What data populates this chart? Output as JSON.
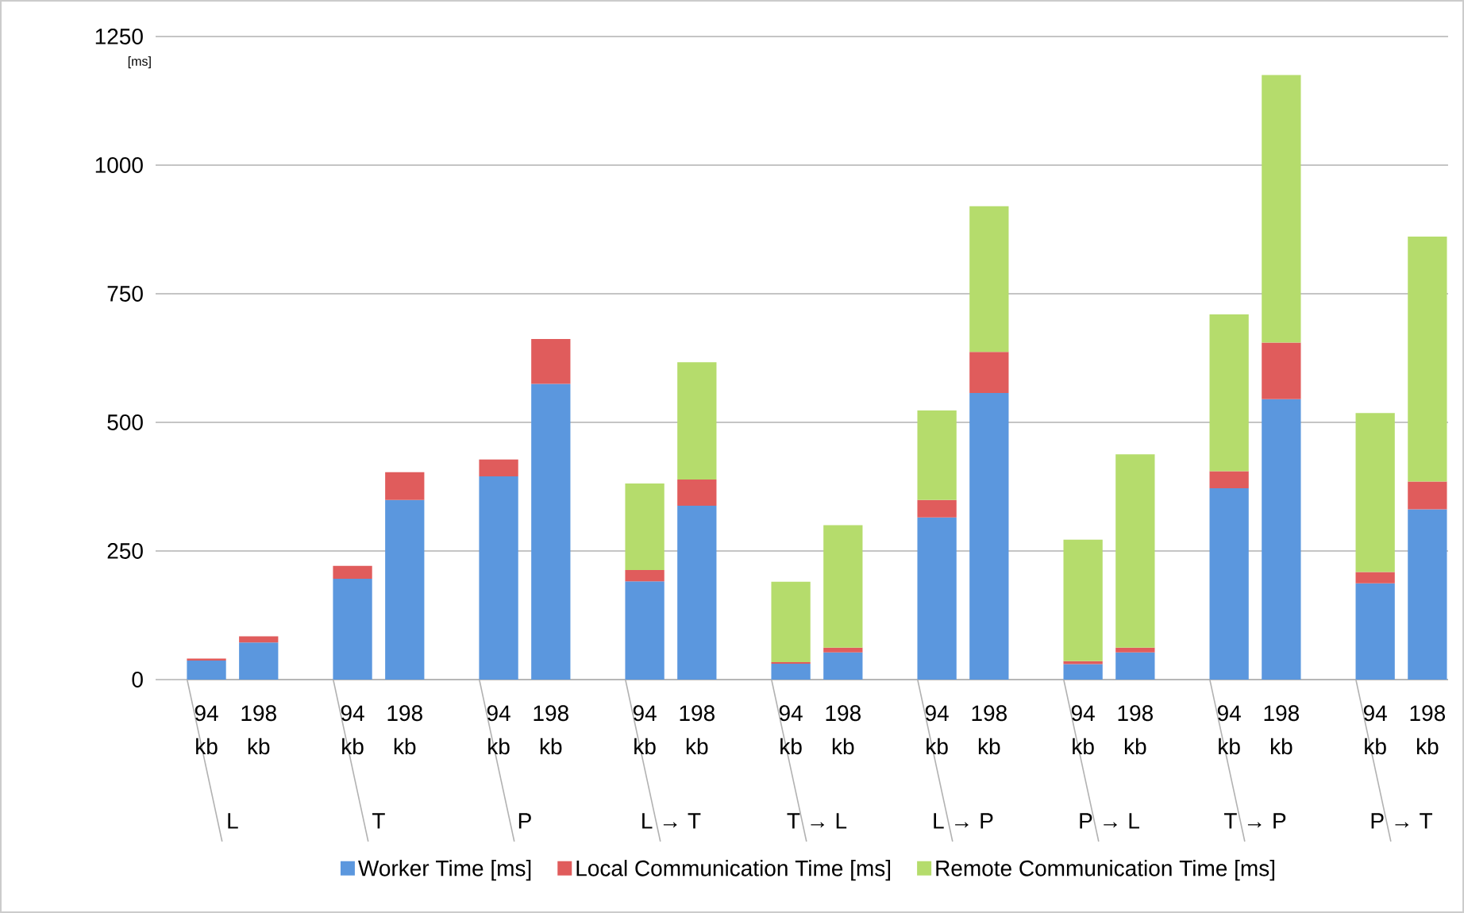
{
  "chart_data": {
    "type": "bar",
    "stacked": true,
    "ylabel": "[ms]",
    "categories": [
      "94 kb",
      "198 kb",
      "94 kb",
      "198 kb",
      "94 kb",
      "198 kb",
      "94 kb",
      "198 kb",
      "94 kb",
      "198 kb",
      "94 kb",
      "198 kb",
      "94 kb",
      "198 kb",
      "94 kb",
      "198 kb",
      "94 kb",
      "198 kb"
    ],
    "series": [
      {
        "name": "Worker Time [ms]",
        "color": "#5b97de",
        "values": [
          37,
          72,
          196,
          349,
          395,
          575,
          191,
          338,
          31,
          53,
          315,
          557,
          30,
          53,
          372,
          545,
          187,
          331
        ]
      },
      {
        "name": "Local Communication Time [ms]",
        "color": "#e05c5c",
        "values": [
          4,
          12,
          25,
          54,
          33,
          87,
          22,
          51,
          3,
          9,
          34,
          80,
          6,
          9,
          33,
          110,
          22,
          54
        ]
      },
      {
        "name": "Remote Communication Time [ms]",
        "color": "#b5dc6c",
        "values": [
          null,
          null,
          null,
          null,
          null,
          null,
          168,
          228,
          156,
          238,
          174,
          283,
          236,
          376,
          305,
          520,
          309,
          476
        ]
      }
    ],
    "annotations": [
      "L",
      "T",
      "P",
      "L → T",
      "T → L",
      "L → P",
      "P → L",
      "T → P",
      "P → T"
    ],
    "ylim": [
      0,
      1250
    ],
    "yticks": [
      0,
      250,
      500,
      750,
      1000,
      1250
    ],
    "grid": "y",
    "legend": "bottom"
  }
}
